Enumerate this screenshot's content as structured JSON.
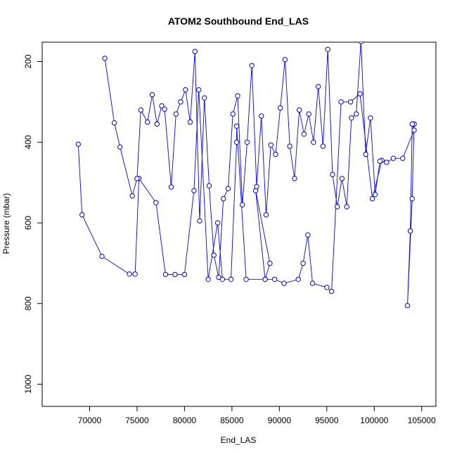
{
  "chart_data": {
    "type": "line",
    "title": "ATOM2 Southbound End_LAS",
    "xlabel": "End_LAS",
    "ylabel": "Pressure (mbar)",
    "xlim": [
      65000,
      106500
    ],
    "ylim": [
      1055,
      152
    ],
    "y_reversed": true,
    "grid": false,
    "legend": "none",
    "series_color": "#0000FF",
    "x_ticks": [
      {
        "value": 70000,
        "label": "70000"
      },
      {
        "value": 75000,
        "label": "75000"
      },
      {
        "value": 80000,
        "label": "80000"
      },
      {
        "value": 85000,
        "label": "85000"
      },
      {
        "value": 90000,
        "label": "90000"
      },
      {
        "value": 95000,
        "label": "95000"
      },
      {
        "value": 100000,
        "label": "100000"
      },
      {
        "value": 105000,
        "label": "105000"
      }
    ],
    "y_ticks": [
      {
        "value": 200,
        "label": "200"
      },
      {
        "value": 400,
        "label": "400"
      },
      {
        "value": 600,
        "label": "600"
      },
      {
        "value": 800,
        "label": "800"
      },
      {
        "value": 1000,
        "label": "1000"
      }
    ],
    "series": [
      {
        "x": [
          68800,
          69200,
          71300,
          74200,
          74800,
          75200,
          77000,
          78000,
          79000,
          80000,
          81000,
          81500,
          82500,
          83500,
          84000,
          84900,
          85500,
          85500,
          86500,
          88500,
          89000,
          87500,
          88500,
          89500,
          90500,
          92000,
          92500,
          93000,
          93500,
          95000,
          95500,
          96500,
          97500,
          98500,
          99800,
          100800,
          101300,
          102000,
          103000,
          104200,
          104000,
          103800,
          103500,
          104000,
          104200,
          104200,
          104000
        ],
        "y": [
          405,
          580,
          683,
          727,
          727,
          490,
          550,
          728,
          728,
          728,
          520,
          270,
          740,
          600,
          740,
          740,
          400,
          360,
          740,
          740,
          700,
          520,
          740,
          740,
          750,
          740,
          700,
          630,
          750,
          760,
          770,
          300,
          300,
          280,
          540,
          445,
          450,
          440,
          440,
          370,
          355,
          620,
          805,
          540,
          355,
          355,
          355
        ]
      },
      {
        "x": [
          71600,
          72600,
          73200,
          74500,
          75000,
          75400,
          76100,
          76600,
          77100,
          77600,
          77900,
          78600,
          79100,
          79600,
          80100,
          80600,
          81100,
          81600,
          82100,
          82600,
          83100,
          83600,
          84100,
          84600,
          85100,
          85600,
          86100,
          86600,
          87100,
          87600,
          88100,
          88600,
          89100,
          89600,
          90100,
          90600,
          91100,
          91600,
          92100,
          92600,
          93100,
          93600,
          94100,
          94600,
          95100,
          95600,
          96100,
          96600,
          97100,
          97600,
          98100,
          98600,
          99100,
          99600,
          100100,
          100600
        ],
        "y": [
          192,
          352,
          412,
          533,
          490,
          320,
          350,
          282,
          355,
          310,
          318,
          511,
          330,
          300,
          270,
          350,
          175,
          595,
          290,
          508,
          680,
          735,
          540,
          515,
          330,
          285,
          555,
          400,
          210,
          510,
          335,
          580,
          407,
          430,
          315,
          195,
          410,
          490,
          320,
          380,
          330,
          400,
          262,
          410,
          170,
          480,
          560,
          490,
          560,
          340,
          330,
          150,
          430,
          340,
          530,
          447
        ]
      }
    ]
  }
}
